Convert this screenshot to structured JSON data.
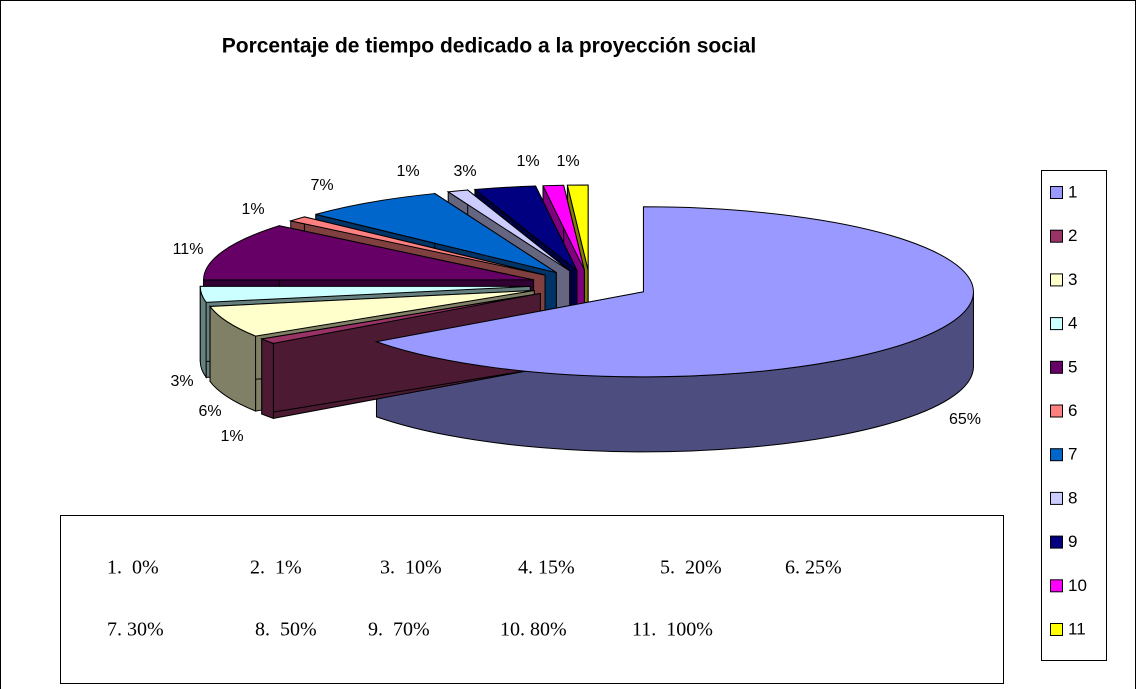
{
  "chart_data": {
    "type": "pie3d",
    "title": "Porcentaje de tiempo dedicado a la proyección social",
    "categories": [
      "1",
      "2",
      "3",
      "4",
      "5",
      "6",
      "7",
      "8",
      "9",
      "10",
      "11"
    ],
    "values": [
      65,
      1,
      6,
      3,
      11,
      1,
      7,
      1,
      3,
      1,
      1
    ],
    "value_labels": [
      "65%",
      "1%",
      "6%",
      "3%",
      "11%",
      "1%",
      "7%",
      "1%",
      "3%",
      "1%",
      "1%"
    ],
    "colors": [
      "#9999ff",
      "#993366",
      "#ffffcc",
      "#ccffff",
      "#660066",
      "#ff8080",
      "#0066cc",
      "#ccccff",
      "#000080",
      "#ff00ff",
      "#ffff00"
    ],
    "legend": "right",
    "annotations": [
      "1.  0%",
      "2.  1%",
      "3.  10%",
      "4. 15%",
      "5.  20%",
      "6. 25%",
      "7. 30%",
      "8.  50%",
      "9.  70%",
      "10. 80%",
      "11.  100%"
    ]
  }
}
